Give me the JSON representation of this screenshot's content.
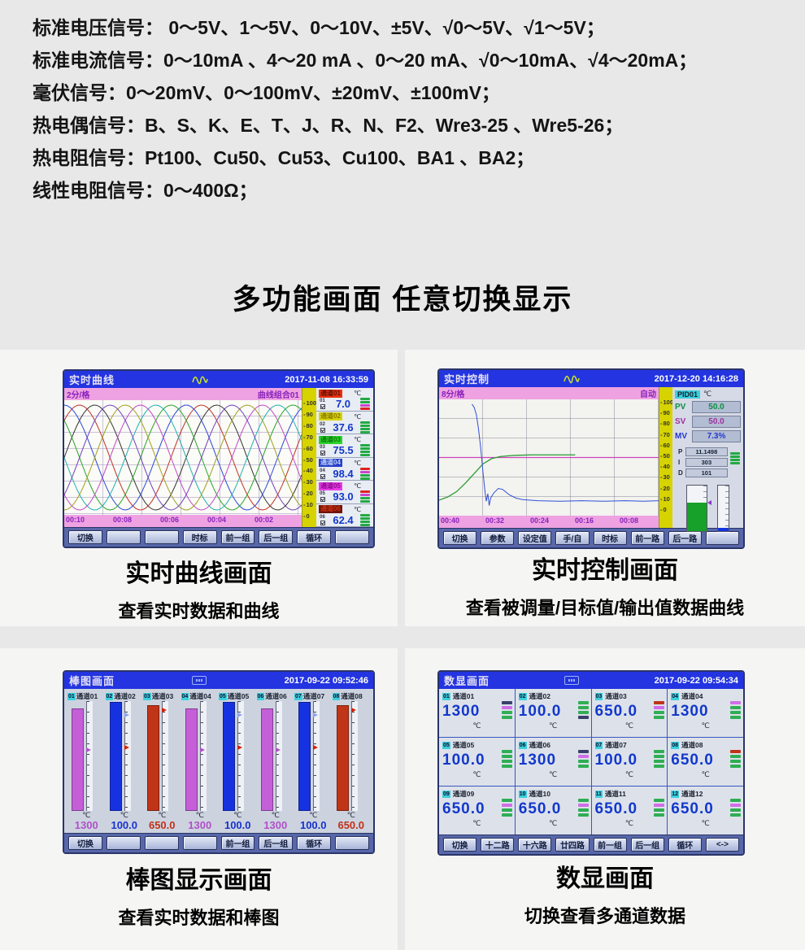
{
  "specs": {
    "lines": [
      "标准电压信号： 0～5V、1～5V、0～10V、±5V、√0～5V、√1～5V；",
      "标准电流信号：0～10mA 、4～20 mA 、0～20 mA、√0～10mA、√4～20mA；",
      "毫伏信号：0～20mV、0～100mV、±20mV、±100mV；",
      "热电偶信号：B、S、K、E、T、J、R、N、F2、Wre3-25 、Wre5-26；",
      "热电阻信号：Pt100、Cu50、Cu53、Cu100、BA1 、BA2；",
      "线性电阻信号：0～400Ω；"
    ]
  },
  "heading": "多功能画面  任意切换显示",
  "captions": {
    "trend": {
      "title": "实时曲线画面",
      "subtitle": "查看实时数据和曲线"
    },
    "control": {
      "title": "实时控制画面",
      "subtitle": "查看被调量/目标值/输出值数据曲线"
    },
    "bargraph": {
      "title": "棒图显示画面",
      "subtitle": "查看实时数据和棒图"
    },
    "digital": {
      "title": "数显画面",
      "subtitle": "切换查看多通道数据"
    }
  },
  "panels": {
    "trend": {
      "title": "实时曲线",
      "datetime": "2017-11-08 16:33:59",
      "interval": "2分/格",
      "group": "曲线组合01",
      "time_labels": [
        "00:10",
        "00:08",
        "00:06",
        "00:04",
        "00:02"
      ],
      "scale_labels": [
        "100",
        "90",
        "80",
        "70",
        "60",
        "50",
        "40",
        "30",
        "20",
        "10",
        "0"
      ],
      "curve_colors": [
        "#333333",
        "#c03028",
        "#2848d8",
        "#28a428",
        "#20b0b0",
        "#c048c8",
        "#a0a020",
        "#7040c0"
      ],
      "channels": [
        {
          "id": "01",
          "name": "通道01",
          "unit": "℃",
          "value": "7.0",
          "chip_bg": "#e83010",
          "chip_fg": "#5c1000",
          "bars": [
            "#22aa44",
            "#22aa44",
            "#cc44cc",
            "#dd2222"
          ]
        },
        {
          "id": "02",
          "name": "通道02",
          "unit": "℃",
          "value": "37.6",
          "chip_bg": "#d8d40c",
          "chip_fg": "#8a7a00",
          "bars": [
            "#22aa44",
            "#22aa44",
            "#22aa44",
            "#22aa44"
          ]
        },
        {
          "id": "03",
          "name": "通道03",
          "unit": "℃",
          "value": "75.5",
          "chip_bg": "#2cd42c",
          "chip_fg": "#0a7a0a",
          "bars": [
            "#22aa44",
            "#22aa44",
            "#22aa44",
            "#22aa44"
          ]
        },
        {
          "id": "04",
          "name": "通道04",
          "unit": "℃",
          "value": "98.4",
          "chip_bg": "#2840c8",
          "chip_fg": "#bcd0f8",
          "bars": [
            "#dd2222",
            "#cc44cc",
            "#22aa44",
            "#22aa44"
          ]
        },
        {
          "id": "05",
          "name": "通道05",
          "unit": "℃",
          "value": "93.0",
          "chip_bg": "#e83ce8",
          "chip_fg": "#8a0a8a",
          "bars": [
            "#dd2222",
            "#cc44cc",
            "#22aa44",
            "#22aa44"
          ]
        },
        {
          "id": "06",
          "name": "通道06",
          "unit": "℃",
          "value": "62.4",
          "chip_bg": "#6e1406",
          "chip_fg": "#d03014",
          "bars": [
            "#22aa44",
            "#22aa44",
            "#22aa44",
            "#22aa44"
          ]
        }
      ],
      "buttons": [
        "切换",
        "",
        "",
        "时标",
        "前一组",
        "后一组",
        "循环",
        ""
      ]
    },
    "control": {
      "title": "实时控制",
      "datetime": "2017-12-20 14:16:28",
      "interval": "8分/格",
      "mode": "自动",
      "loop": "PID01",
      "unit": "℃",
      "pv": {
        "label": "PV",
        "value": "50.0",
        "color": "#089040"
      },
      "sv": {
        "label": "SV",
        "value": "50.0",
        "color": "#a030a0"
      },
      "mv": {
        "label": "MV",
        "value": "7.3%",
        "color": "#2238d0"
      },
      "pid": [
        {
          "label": "P",
          "value": "11.1498"
        },
        {
          "label": "I",
          "value": "303"
        },
        {
          "label": "D",
          "value": "101"
        }
      ],
      "time_labels": [
        "00:40",
        "00:32",
        "00:24",
        "00:16",
        "00:08"
      ],
      "scale_labels": [
        "100",
        "90",
        "80",
        "70",
        "60",
        "50",
        "40",
        "30",
        "20",
        "10",
        "0"
      ],
      "curves": {
        "sv_level": 50,
        "sv_color": "#cc44bb",
        "green_color": "#2a9a32",
        "blue_color": "#3050d8",
        "green": [
          [
            0,
            10
          ],
          [
            0.04,
            13
          ],
          [
            0.08,
            18
          ],
          [
            0.12,
            26
          ],
          [
            0.16,
            35
          ],
          [
            0.2,
            44
          ],
          [
            0.24,
            49
          ],
          [
            0.28,
            51
          ],
          [
            0.34,
            52
          ],
          [
            0.42,
            52.5
          ],
          [
            0.52,
            52.5
          ],
          [
            0.62,
            52.5
          ]
        ],
        "blue": [
          [
            0.15,
            100
          ],
          [
            0.16,
            97
          ],
          [
            0.17,
            90
          ],
          [
            0.18,
            76
          ],
          [
            0.19,
            58
          ],
          [
            0.2,
            36
          ],
          [
            0.208,
            20
          ],
          [
            0.215,
            9
          ],
          [
            0.222,
            16
          ],
          [
            0.228,
            5
          ],
          [
            0.235,
            12
          ],
          [
            0.25,
            17
          ],
          [
            0.27,
            21
          ],
          [
            0.29,
            20
          ],
          [
            0.32,
            15
          ],
          [
            0.35,
            12
          ],
          [
            0.38,
            10.5
          ],
          [
            0.45,
            9.5
          ],
          [
            0.55,
            9
          ],
          [
            0.65,
            9.5
          ],
          [
            0.75,
            9
          ],
          [
            0.85,
            9.5
          ],
          [
            0.93,
            9
          ],
          [
            1,
            9.5
          ]
        ]
      },
      "buttons": [
        "切换",
        "参数",
        "设定值",
        "手/自",
        "时标",
        "前一路",
        "后一路",
        ""
      ]
    },
    "bargraph": {
      "title": "棒图画面",
      "datetime": "2017-09-22 09:52:46",
      "channels": [
        {
          "id": "01",
          "name": "通道01",
          "unit": "℃",
          "value": "1300",
          "color": "#c45fd8",
          "value_color": "#b050c8",
          "h": 0.93,
          "markers": [
            {
              "pos": 0.42,
              "color": "#b050c8"
            }
          ]
        },
        {
          "id": "02",
          "name": "通道02",
          "unit": "℃",
          "value": "100.0",
          "color": "#1632e0",
          "value_color": "#1632d0",
          "h": 0.99,
          "markers": [
            {
              "pos": 0.1,
              "color": "#8fa2f2"
            },
            {
              "pos": 0.4,
              "color": "#d42000"
            }
          ]
        },
        {
          "id": "03",
          "name": "通道03",
          "unit": "℃",
          "value": "650.0",
          "color": "#c03418",
          "value_color": "#c03018",
          "h": 0.96,
          "markers": [
            {
              "pos": 0.06,
              "color": "#d42000"
            }
          ]
        },
        {
          "id": "04",
          "name": "通道04",
          "unit": "℃",
          "value": "1300",
          "color": "#c45fd8",
          "value_color": "#b050c8",
          "h": 0.93,
          "markers": [
            {
              "pos": 0.42,
              "color": "#b050c8"
            }
          ]
        },
        {
          "id": "05",
          "name": "通道05",
          "unit": "℃",
          "value": "100.0",
          "color": "#1632e0",
          "value_color": "#1632d0",
          "h": 0.99,
          "markers": [
            {
              "pos": 0.1,
              "color": "#8fa2f2"
            },
            {
              "pos": 0.4,
              "color": "#d42000"
            }
          ]
        },
        {
          "id": "06",
          "name": "通道06",
          "unit": "℃",
          "value": "1300",
          "color": "#c45fd8",
          "value_color": "#b050c8",
          "h": 0.93,
          "markers": [
            {
              "pos": 0.42,
              "color": "#b050c8"
            }
          ]
        },
        {
          "id": "07",
          "name": "通道07",
          "unit": "℃",
          "value": "100.0",
          "color": "#1632e0",
          "value_color": "#1632d0",
          "h": 0.99,
          "markers": [
            {
              "pos": 0.1,
              "color": "#8fa2f2"
            },
            {
              "pos": 0.4,
              "color": "#d42000"
            }
          ]
        },
        {
          "id": "08",
          "name": "通道08",
          "unit": "℃",
          "value": "650.0",
          "color": "#c03418",
          "value_color": "#c03018",
          "h": 0.96,
          "markers": [
            {
              "pos": 0.06,
              "color": "#d42000"
            }
          ]
        }
      ],
      "buttons": [
        "切换",
        "",
        "",
        "",
        "前一组",
        "后一组",
        "循环",
        ""
      ]
    },
    "digital": {
      "title": "数显画面",
      "datetime": "2017-09-22 09:54:34",
      "cells": [
        {
          "id": "01",
          "name": "通道01",
          "value": "1300",
          "unit": "℃",
          "bars": [
            "#38406a",
            "#cf6ee8",
            "#2fae54",
            "#2fae54"
          ]
        },
        {
          "id": "02",
          "name": "通道02",
          "value": "100.0",
          "unit": "℃",
          "bars": [
            "#2fae54",
            "#2fae54",
            "#2fae54",
            "#38406a"
          ]
        },
        {
          "id": "03",
          "name": "通道03",
          "value": "650.0",
          "unit": "℃",
          "bars": [
            "#c03418",
            "#cf6ee8",
            "#2fae54",
            "#2fae54"
          ]
        },
        {
          "id": "04",
          "name": "通道04",
          "value": "1300",
          "unit": "℃",
          "bars": [
            "#cf6ee8",
            "#2fae54",
            "#2fae54",
            "#2fae54"
          ]
        },
        {
          "id": "05",
          "name": "通道05",
          "value": "100.0",
          "unit": "℃",
          "bars": [
            "#2fae54",
            "#2fae54",
            "#2fae54",
            "#2fae54"
          ]
        },
        {
          "id": "06",
          "name": "通道06",
          "value": "1300",
          "unit": "℃",
          "bars": [
            "#38406a",
            "#cf6ee8",
            "#2fae54",
            "#2fae54"
          ]
        },
        {
          "id": "07",
          "name": "通道07",
          "value": "100.0",
          "unit": "℃",
          "bars": [
            "#2fae54",
            "#2fae54",
            "#2fae54",
            "#2fae54"
          ]
        },
        {
          "id": "08",
          "name": "通道08",
          "value": "650.0",
          "unit": "℃",
          "bars": [
            "#c03418",
            "#2fae54",
            "#2fae54",
            "#2fae54"
          ]
        },
        {
          "id": "09",
          "name": "通道09",
          "value": "650.0",
          "unit": "℃",
          "bars": [
            "#2fae54",
            "#cf6ee8",
            "#2fae54",
            "#2fae54"
          ]
        },
        {
          "id": "10",
          "name": "通道10",
          "value": "650.0",
          "unit": "℃",
          "bars": [
            "#2fae54",
            "#cf6ee8",
            "#2fae54",
            "#2fae54"
          ]
        },
        {
          "id": "11",
          "name": "通道11",
          "value": "650.0",
          "unit": "℃",
          "bars": [
            "#2fae54",
            "#cf6ee8",
            "#2fae54",
            "#2fae54"
          ]
        },
        {
          "id": "12",
          "name": "通道12",
          "value": "650.0",
          "unit": "℃",
          "bars": [
            "#2fae54",
            "#cf6ee8",
            "#2fae54",
            "#2fae54"
          ]
        }
      ],
      "buttons": [
        "切换",
        "十二路",
        "十六路",
        "廿四路",
        "前一组",
        "后一组",
        "循环",
        "<->"
      ]
    }
  }
}
